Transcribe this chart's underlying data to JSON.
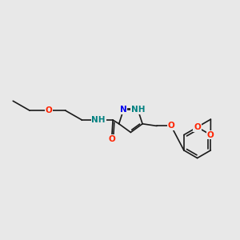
{
  "bg_color": "#e8e8e8",
  "bond_color": "#1a1a1a",
  "bond_width": 1.2,
  "atom_colors": {
    "N": "#0000ee",
    "O": "#ff2200",
    "H_on_N": "#008080"
  },
  "font_size_atom": 7.5,
  "figsize": [
    3.0,
    3.0
  ],
  "dpi": 100
}
